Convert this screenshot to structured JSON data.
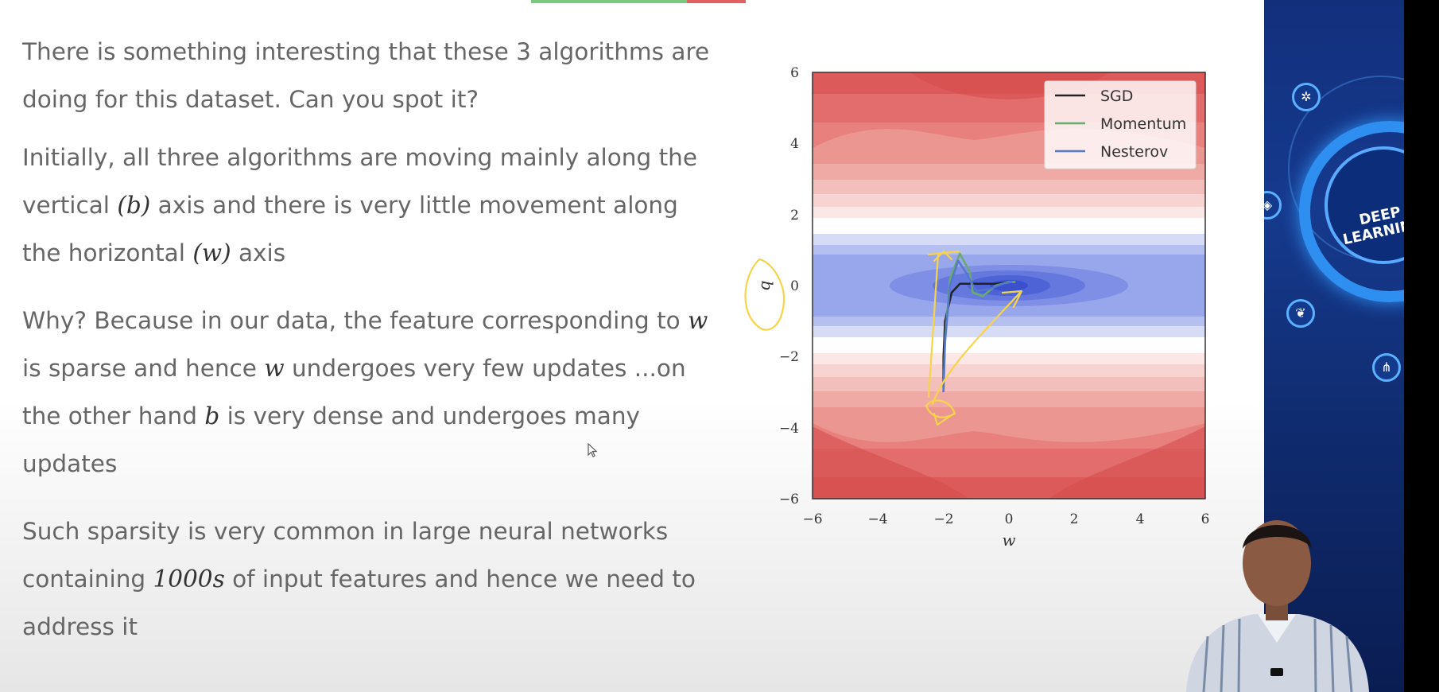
{
  "slide": {
    "paragraphs": [
      {
        "text": "There is something interesting that these 3 algorithms are doing for this dataset. Can you spot it?"
      },
      {
        "part1": "Initially, all three algorithms are moving mainly along the vertical ",
        "math1": "(b)",
        "part2": " axis and there is very little movement along the horizontal ",
        "math2": "(w)",
        "part3": " axis"
      },
      {
        "part1": "Why? Because in our data, the feature corresponding to ",
        "math1": "w",
        "part2": " is sparse and hence ",
        "math2": "w",
        "part3": " undergoes very few updates ...on the other hand ",
        "math3": "b",
        "part4": " is very dense and undergoes many updates"
      },
      {
        "part1": "Such sparsity is very common in large neural networks containing ",
        "math1": "1000s",
        "part2": " of input features and hence we need to address it"
      }
    ]
  },
  "chart_data": {
    "type": "line",
    "plot_kind": "contour with optimization paths",
    "xlabel": "w",
    "ylabel": "b",
    "xlim": [
      -6,
      6
    ],
    "ylim": [
      -6,
      6
    ],
    "xticks": [
      "−6",
      "−4",
      "−2",
      "0",
      "2",
      "4",
      "6"
    ],
    "yticks": [
      "6",
      "4",
      "2",
      "0",
      "−2",
      "−4",
      "−6"
    ],
    "legend_position": "top-right",
    "series": [
      {
        "name": "SGD",
        "color": "#222222",
        "x": [
          -2.0,
          -2.0,
          -1.95,
          -1.75,
          -1.5,
          -1.0,
          -0.4,
          0.1
        ],
        "y": [
          -3.0,
          -2.0,
          -1.0,
          -0.2,
          0.05,
          0.05,
          0.05,
          0.1
        ]
      },
      {
        "name": "Momentum",
        "color": "#6aaa6e",
        "x": [
          -2.0,
          -1.95,
          -1.8,
          -1.5,
          -1.2,
          -1.1,
          -0.8,
          -0.4,
          0.0,
          0.2
        ],
        "y": [
          -3.0,
          -1.5,
          0.2,
          0.9,
          0.4,
          -0.2,
          -0.3,
          0.0,
          0.1,
          0.1
        ]
      },
      {
        "name": "Nesterov",
        "color": "#5577cc",
        "x": [
          -2.0,
          -1.95,
          -1.8,
          -1.55,
          -1.3,
          -1.0,
          -0.6,
          -0.2,
          0.1
        ],
        "y": [
          -3.0,
          -1.6,
          0.0,
          0.7,
          0.35,
          -0.15,
          -0.1,
          0.05,
          0.1
        ]
      }
    ]
  },
  "branding": {
    "logo_text": "DEEP LEARNING",
    "accent_color": "#2f8ff0"
  }
}
